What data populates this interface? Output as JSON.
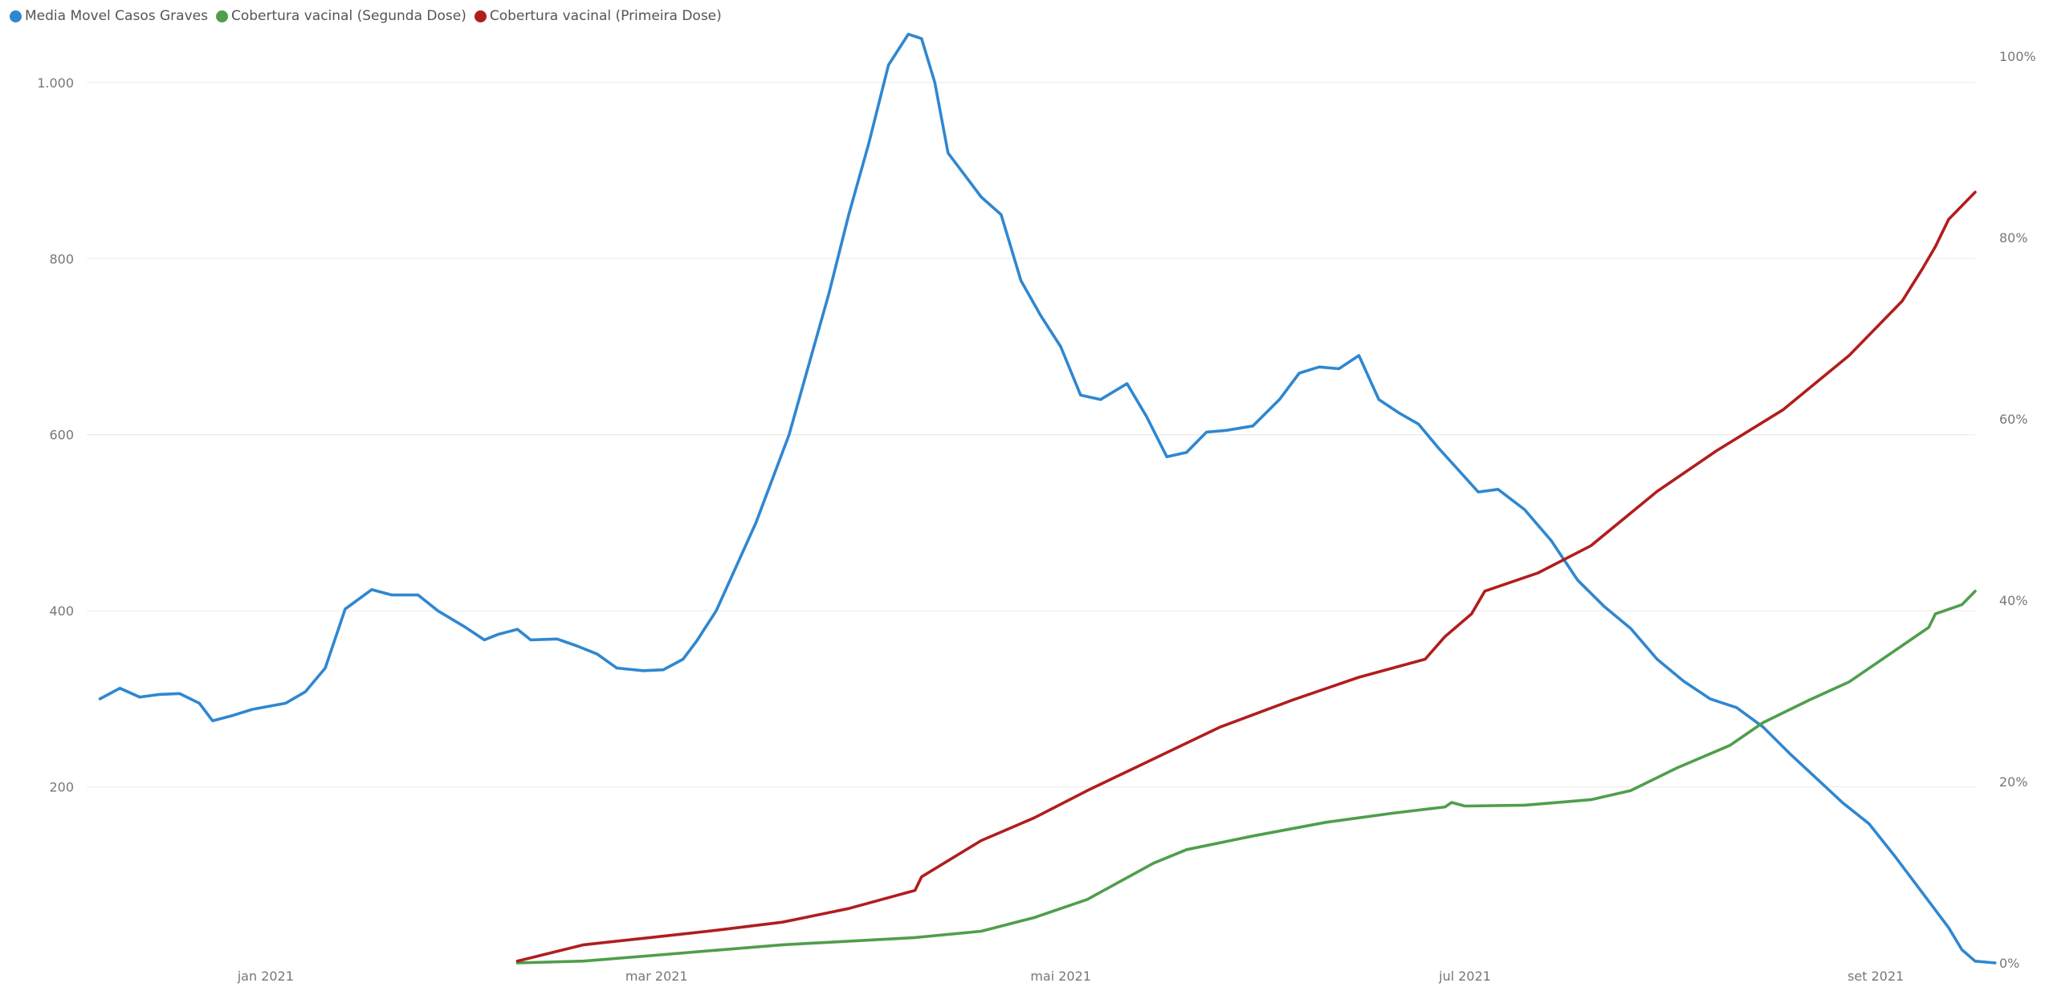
{
  "legend": [
    {
      "label": "Media Movel Casos Graves",
      "color": "#2f87d0"
    },
    {
      "label": "Cobertura vacinal (Segunda Dose)",
      "color": "#4f9e4b"
    },
    {
      "label": "Cobertura vacinal (Primeira Dose)",
      "color": "#b11d1d"
    }
  ],
  "chart_data": {
    "type": "line",
    "title": "",
    "xlabel": "",
    "ylabel": "",
    "x_ticks": [
      {
        "label": "jan 2021",
        "date": "2021-01-01"
      },
      {
        "label": "mar 2021",
        "date": "2021-03-01"
      },
      {
        "label": "mai 2021",
        "date": "2021-05-01"
      },
      {
        "label": "jul 2021",
        "date": "2021-07-01"
      },
      {
        "label": "set 2021",
        "date": "2021-09-01"
      }
    ],
    "xlim": [
      "2020-12-05",
      "2021-09-16"
    ],
    "y_left": {
      "ticks": [
        200,
        400,
        600,
        800,
        1000
      ],
      "tick_labels": [
        "200",
        "400",
        "600",
        "800",
        "1.000"
      ],
      "ylim": [
        0,
        1030
      ]
    },
    "y_right": {
      "ticks": [
        0,
        0.2,
        0.4,
        0.6,
        0.8,
        1.0
      ],
      "tick_labels": [
        "0%",
        "20%",
        "40%",
        "60%",
        "80%",
        "100%"
      ],
      "ylim": [
        0,
        1.0
      ]
    },
    "grid": true,
    "legend_position": "top-left",
    "series": [
      {
        "name": "Media Movel Casos Graves",
        "axis": "left",
        "color": "#2f87d0",
        "points": [
          [
            "2020-12-07",
            300
          ],
          [
            "2020-12-10",
            312
          ],
          [
            "2020-12-13",
            302
          ],
          [
            "2020-12-16",
            305
          ],
          [
            "2020-12-19",
            306
          ],
          [
            "2020-12-22",
            295
          ],
          [
            "2020-12-24",
            275
          ],
          [
            "2020-12-27",
            281
          ],
          [
            "2020-12-30",
            288
          ],
          [
            "2021-01-04",
            295
          ],
          [
            "2021-01-07",
            308
          ],
          [
            "2021-01-10",
            335
          ],
          [
            "2021-01-13",
            402
          ],
          [
            "2021-01-17",
            424
          ],
          [
            "2021-01-20",
            418
          ],
          [
            "2021-01-24",
            418
          ],
          [
            "2021-01-27",
            400
          ],
          [
            "2021-01-31",
            382
          ],
          [
            "2021-02-03",
            367
          ],
          [
            "2021-02-05",
            373
          ],
          [
            "2021-02-08",
            379
          ],
          [
            "2021-02-10",
            367
          ],
          [
            "2021-02-14",
            368
          ],
          [
            "2021-02-17",
            360
          ],
          [
            "2021-02-20",
            351
          ],
          [
            "2021-02-23",
            335
          ],
          [
            "2021-02-27",
            332
          ],
          [
            "2021-03-02",
            333
          ],
          [
            "2021-03-05",
            345
          ],
          [
            "2021-03-07",
            365
          ],
          [
            "2021-03-10",
            400
          ],
          [
            "2021-03-13",
            450
          ],
          [
            "2021-03-16",
            500
          ],
          [
            "2021-03-18",
            540
          ],
          [
            "2021-03-21",
            600
          ],
          [
            "2021-03-24",
            680
          ],
          [
            "2021-03-27",
            760
          ],
          [
            "2021-03-30",
            850
          ],
          [
            "2021-04-02",
            930
          ],
          [
            "2021-04-05",
            1020
          ],
          [
            "2021-04-08",
            1055
          ],
          [
            "2021-04-10",
            1050
          ],
          [
            "2021-04-12",
            1000
          ],
          [
            "2021-04-14",
            920
          ],
          [
            "2021-04-16",
            900
          ],
          [
            "2021-04-19",
            870
          ],
          [
            "2021-04-22",
            850
          ],
          [
            "2021-04-25",
            775
          ],
          [
            "2021-04-28",
            735
          ],
          [
            "2021-05-01",
            700
          ],
          [
            "2021-05-04",
            645
          ],
          [
            "2021-05-07",
            640
          ],
          [
            "2021-05-11",
            658
          ],
          [
            "2021-05-14",
            620
          ],
          [
            "2021-05-17",
            575
          ],
          [
            "2021-05-20",
            580
          ],
          [
            "2021-05-23",
            603
          ],
          [
            "2021-05-26",
            605
          ],
          [
            "2021-05-30",
            610
          ],
          [
            "2021-06-03",
            640
          ],
          [
            "2021-06-06",
            670
          ],
          [
            "2021-06-09",
            677
          ],
          [
            "2021-06-12",
            675
          ],
          [
            "2021-06-15",
            690
          ],
          [
            "2021-06-18",
            640
          ],
          [
            "2021-06-21",
            625
          ],
          [
            "2021-06-24",
            612
          ],
          [
            "2021-06-27",
            585
          ],
          [
            "2021-06-30",
            560
          ],
          [
            "2021-07-03",
            535
          ],
          [
            "2021-07-06",
            538
          ],
          [
            "2021-07-10",
            515
          ],
          [
            "2021-07-14",
            480
          ],
          [
            "2021-07-18",
            435
          ],
          [
            "2021-07-22",
            405
          ],
          [
            "2021-07-26",
            380
          ],
          [
            "2021-07-30",
            345
          ],
          [
            "2021-08-03",
            320
          ],
          [
            "2021-08-07",
            300
          ],
          [
            "2021-08-11",
            290
          ],
          [
            "2021-08-15",
            268
          ],
          [
            "2021-08-19",
            238
          ],
          [
            "2021-08-23",
            210
          ],
          [
            "2021-08-27",
            182
          ],
          [
            "2021-08-31",
            158
          ],
          [
            "2021-09-04",
            120
          ],
          [
            "2021-09-08",
            80
          ],
          [
            "2021-09-12",
            40
          ],
          [
            "2021-09-14",
            15
          ],
          [
            "2021-09-16",
            2
          ],
          [
            "2021-09-19",
            0
          ]
        ]
      },
      {
        "name": "Cobertura vacinal (Segunda Dose)",
        "axis": "right",
        "color": "#4f9e4b",
        "points": [
          [
            "2021-02-08",
            0.0
          ],
          [
            "2021-02-18",
            0.002
          ],
          [
            "2021-02-28",
            0.008
          ],
          [
            "2021-03-10",
            0.014
          ],
          [
            "2021-03-20",
            0.02
          ],
          [
            "2021-03-30",
            0.024
          ],
          [
            "2021-04-09",
            0.028
          ],
          [
            "2021-04-19",
            0.035
          ],
          [
            "2021-04-27",
            0.05
          ],
          [
            "2021-05-05",
            0.07
          ],
          [
            "2021-05-10",
            0.09
          ],
          [
            "2021-05-15",
            0.11
          ],
          [
            "2021-05-20",
            0.125
          ],
          [
            "2021-05-30",
            0.14
          ],
          [
            "2021-06-10",
            0.155
          ],
          [
            "2021-06-20",
            0.165
          ],
          [
            "2021-06-28",
            0.172
          ],
          [
            "2021-06-29",
            0.177
          ],
          [
            "2021-07-01",
            0.173
          ],
          [
            "2021-07-10",
            0.174
          ],
          [
            "2021-07-20",
            0.18
          ],
          [
            "2021-07-26",
            0.19
          ],
          [
            "2021-08-02",
            0.215
          ],
          [
            "2021-08-10",
            0.24
          ],
          [
            "2021-08-15",
            0.265
          ],
          [
            "2021-08-22",
            0.29
          ],
          [
            "2021-08-28",
            0.31
          ],
          [
            "2021-09-05",
            0.35
          ],
          [
            "2021-09-09",
            0.37
          ],
          [
            "2021-09-10",
            0.385
          ],
          [
            "2021-09-14",
            0.395
          ],
          [
            "2021-09-16",
            0.41
          ]
        ]
      },
      {
        "name": "Cobertura vacinal (Primeira Dose)",
        "axis": "right",
        "color": "#b11d1d",
        "points": [
          [
            "2021-02-08",
            0.002
          ],
          [
            "2021-02-18",
            0.02
          ],
          [
            "2021-02-28",
            0.028
          ],
          [
            "2021-03-10",
            0.036
          ],
          [
            "2021-03-20",
            0.045
          ],
          [
            "2021-03-30",
            0.06
          ],
          [
            "2021-04-09",
            0.08
          ],
          [
            "2021-04-10",
            0.095
          ],
          [
            "2021-04-19",
            0.135
          ],
          [
            "2021-04-27",
            0.16
          ],
          [
            "2021-05-05",
            0.19
          ],
          [
            "2021-05-15",
            0.225
          ],
          [
            "2021-05-25",
            0.26
          ],
          [
            "2021-06-05",
            0.29
          ],
          [
            "2021-06-15",
            0.315
          ],
          [
            "2021-06-25",
            0.335
          ],
          [
            "2021-06-28",
            0.36
          ],
          [
            "2021-07-02",
            0.385
          ],
          [
            "2021-07-04",
            0.41
          ],
          [
            "2021-07-12",
            0.43
          ],
          [
            "2021-07-20",
            0.46
          ],
          [
            "2021-07-30",
            0.52
          ],
          [
            "2021-08-08",
            0.565
          ],
          [
            "2021-08-18",
            0.61
          ],
          [
            "2021-08-28",
            0.67
          ],
          [
            "2021-09-05",
            0.73
          ],
          [
            "2021-09-08",
            0.765
          ],
          [
            "2021-09-10",
            0.79
          ],
          [
            "2021-09-12",
            0.82
          ],
          [
            "2021-09-16",
            0.85
          ]
        ]
      }
    ]
  }
}
